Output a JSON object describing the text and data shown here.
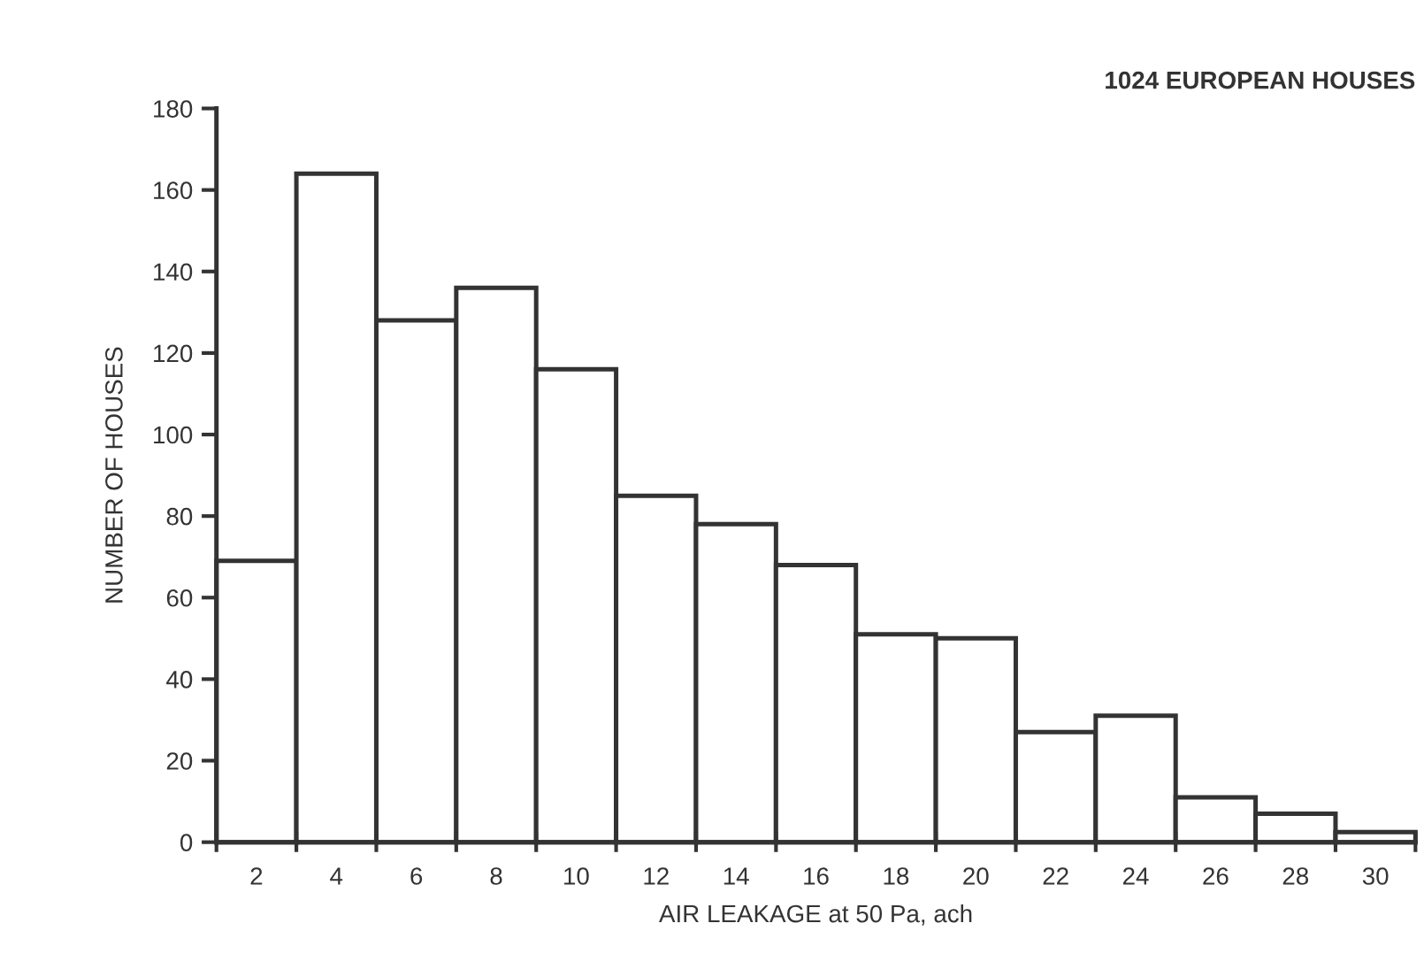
{
  "chart_data": {
    "type": "histogram",
    "title": "1024 EUROPEAN HOUSES",
    "xlabel": "AIR LEAKAGE at 50 Pa, ach",
    "ylabel": "NUMBER OF HOUSES",
    "bins": [
      1,
      3,
      5,
      7,
      9,
      11,
      13,
      15,
      17,
      19,
      21,
      23,
      25,
      27,
      29,
      31
    ],
    "values": [
      69,
      164,
      128,
      136,
      116,
      85,
      78,
      68,
      51,
      50,
      27,
      31,
      11,
      7,
      2.5
    ],
    "color": "#ffffff",
    "xlim": [
      1,
      31
    ],
    "ylim": [
      0,
      180
    ],
    "xticks": [
      {
        "value": 1,
        "label": null
      },
      2,
      {
        "value": 3,
        "label": null
      },
      4,
      {
        "value": 5,
        "label": null
      },
      6,
      {
        "value": 7,
        "label": null
      },
      8,
      {
        "value": 9,
        "label": null
      },
      10,
      {
        "value": 11,
        "label": null
      },
      12,
      {
        "value": 13,
        "label": null
      },
      14,
      {
        "value": 15,
        "label": null
      },
      16,
      {
        "value": 17,
        "label": null
      },
      18,
      {
        "value": 19,
        "label": null
      },
      20,
      {
        "value": 21,
        "label": null
      },
      22,
      {
        "value": 23,
        "label": null
      },
      24,
      {
        "value": 25,
        "label": null
      },
      26,
      {
        "value": 27,
        "label": null
      },
      28,
      {
        "value": 29,
        "label": null
      },
      30,
      {
        "value": 31,
        "label": null
      }
    ],
    "yticks": [
      0,
      20,
      40,
      60,
      80,
      100,
      120,
      140,
      160,
      180
    ],
    "grid": false,
    "legend": false
  }
}
